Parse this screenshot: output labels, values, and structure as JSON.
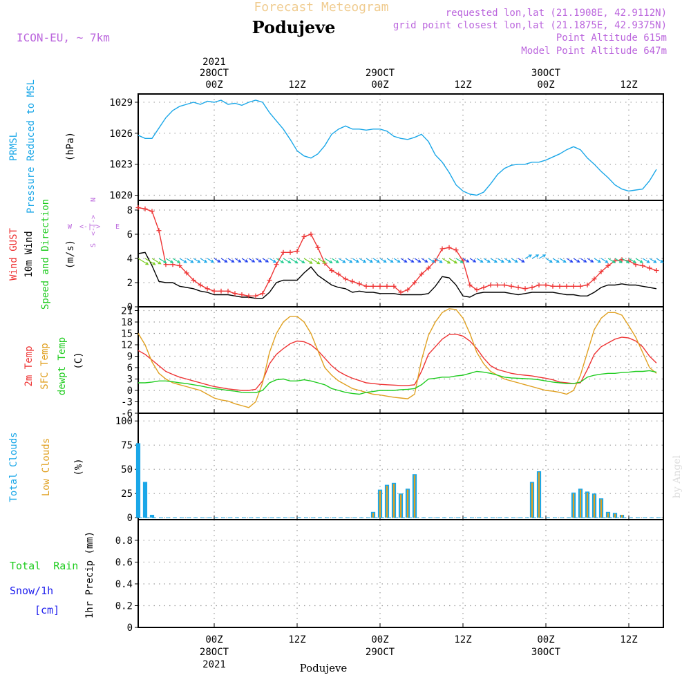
{
  "header": {
    "title": "Forecast Meteogram",
    "location": "Podujeve",
    "model": "ICON-EU, ~ 7km",
    "requested": "requested lon,lat (21.1908E, 42.9112N)",
    "gridpoint": "grid point closest lon,lat (21.1875E, 42.9375N)",
    "point_alt": "Point Altitude 615m",
    "model_alt": "Model Point Altitude 647m",
    "footer_location": "Podujeve",
    "watermark": "by Angel"
  },
  "time_axis": {
    "top": [
      {
        "line1": "2021",
        "line2": "28OCT",
        "line3": "00Z",
        "hour": 0
      },
      {
        "line1": "",
        "line2": "",
        "line3": "12Z",
        "hour": 12
      },
      {
        "line1": "",
        "line2": "29OCT",
        "line3": "00Z",
        "hour": 24
      },
      {
        "line1": "",
        "line2": "",
        "line3": "12Z",
        "hour": 36
      },
      {
        "line1": "",
        "line2": "30OCT",
        "line3": "00Z",
        "hour": 48
      },
      {
        "line1": "",
        "line2": "",
        "line3": "12Z",
        "hour": 60
      }
    ],
    "bottom": [
      {
        "line1": "00Z",
        "line2": "28OCT",
        "line3": "2021",
        "hour": 0
      },
      {
        "line1": "12Z",
        "line2": "",
        "line3": "",
        "hour": 12
      },
      {
        "line1": "00Z",
        "line2": "29OCT",
        "line3": "",
        "hour": 24
      },
      {
        "line1": "12Z",
        "line2": "",
        "line3": "",
        "hour": 36
      },
      {
        "line1": "00Z",
        "line2": "30OCT",
        "line3": "",
        "hour": 48
      },
      {
        "line1": "12Z",
        "line2": "",
        "line3": "",
        "hour": 60
      }
    ],
    "xlim": [
      -11,
      65
    ]
  },
  "panel_labels": {
    "pressure": {
      "name": "PRMSL",
      "desc": "Pressure Reduced to MSL",
      "unit": "(hPa)"
    },
    "wind": {
      "gust": "Wind GUST",
      "wind10": "10m Wind",
      "speed": "Speed and Direction",
      "unit": "(m/s)",
      "compass_n": "N",
      "compass_s": "S",
      "compass_w": "W",
      "compass_e": "E",
      "compass_ud": "<-|->",
      "compass_lr": "<-|->"
    },
    "temp": {
      "t2m": "2m Temp",
      "sfc": "SFC Temp",
      "dewpt": "dewpt Temp",
      "unit": "(C)"
    },
    "clouds": {
      "total": "Total Clouds",
      "low": "Low Clouds",
      "unit": "(%)"
    },
    "precip": {
      "rain": "Total  Rain",
      "snow": "Snow/1h",
      "snow_unit": "[cm]",
      "unit": "1hr Precip (mm)"
    }
  },
  "colors": {
    "pressure": "#1aa7e8",
    "gust": "#ee3333",
    "wind": "#000000",
    "t2m": "#ee3333",
    "sfc": "#e0a020",
    "dewpt": "#20cc20",
    "total_clouds": "#1aa7e8",
    "low_clouds": "#e0a020",
    "rain": "#20cc20",
    "snow": "#2020ee",
    "model": "#bb66dd",
    "title": "#f0cc90"
  },
  "chart_data": [
    {
      "type": "line",
      "name": "pressure",
      "ylabel": "(hPa)",
      "ylim": [
        1019.5,
        1029.8
      ],
      "yticks": [
        1020,
        1023,
        1026,
        1029
      ],
      "x": [
        -11,
        -10,
        -9,
        -8,
        -7,
        -6,
        -5,
        -4,
        -3,
        -2,
        -1,
        0,
        1,
        2,
        3,
        4,
        5,
        6,
        7,
        8,
        9,
        10,
        11,
        12,
        13,
        14,
        15,
        16,
        17,
        18,
        19,
        20,
        21,
        22,
        23,
        24,
        25,
        26,
        27,
        28,
        29,
        30,
        31,
        32,
        33,
        34,
        35,
        36,
        37,
        38,
        39,
        40,
        41,
        42,
        43,
        44,
        45,
        46,
        47,
        48,
        49,
        50,
        51,
        52,
        53,
        54,
        55,
        56,
        57,
        58,
        59,
        60,
        61,
        62,
        63,
        64
      ],
      "series": [
        {
          "values": [
            1025.8,
            1025.5,
            1025.5,
            1026.5,
            1027.5,
            1028.2,
            1028.6,
            1028.8,
            1029.0,
            1028.8,
            1029.1,
            1029.0,
            1029.2,
            1028.8,
            1028.9,
            1028.7,
            1029.0,
            1029.2,
            1029.0,
            1028.0,
            1027.2,
            1026.4,
            1025.4,
            1024.3,
            1023.8,
            1023.6,
            1024.0,
            1024.8,
            1025.9,
            1026.4,
            1026.7,
            1026.4,
            1026.4,
            1026.3,
            1026.4,
            1026.4,
            1026.2,
            1025.7,
            1025.5,
            1025.4,
            1025.6,
            1025.9,
            1025.2,
            1023.9,
            1023.2,
            1022.2,
            1021.0,
            1020.4,
            1020.1,
            1020.0,
            1020.3,
            1021.1,
            1022.0,
            1022.6,
            1022.9,
            1023.0,
            1023.0,
            1023.2,
            1023.2,
            1023.4,
            1023.7,
            1024.0,
            1024.4,
            1024.7,
            1024.4,
            1023.6,
            1023.0,
            1022.3,
            1021.7,
            1021.0,
            1020.6,
            1020.4,
            1020.5,
            1020.6,
            1021.4,
            1022.5
          ]
        }
      ]
    },
    {
      "type": "line",
      "name": "wind",
      "ylabel": "(m/s)",
      "ylim": [
        0,
        8.8
      ],
      "yticks": [
        0,
        2,
        4,
        6,
        8
      ],
      "x": [
        -11,
        -10,
        -9,
        -8,
        -7,
        -6,
        -5,
        -4,
        -3,
        -2,
        -1,
        0,
        1,
        2,
        3,
        4,
        5,
        6,
        7,
        8,
        9,
        10,
        11,
        12,
        13,
        14,
        15,
        16,
        17,
        18,
        19,
        20,
        21,
        22,
        23,
        24,
        25,
        26,
        27,
        28,
        29,
        30,
        31,
        32,
        33,
        34,
        35,
        36,
        37,
        38,
        39,
        40,
        41,
        42,
        43,
        44,
        45,
        46,
        47,
        48,
        49,
        50,
        51,
        52,
        53,
        54,
        55,
        56,
        57,
        58,
        59,
        60,
        61,
        62,
        63,
        64
      ],
      "series": [
        {
          "name": "gust",
          "values": [
            8.2,
            8.1,
            7.9,
            6.3,
            3.5,
            3.5,
            3.4,
            2.8,
            2.2,
            1.8,
            1.5,
            1.3,
            1.3,
            1.3,
            1.1,
            1.0,
            0.9,
            0.9,
            1.1,
            2.2,
            3.5,
            4.5,
            4.5,
            4.6,
            5.8,
            6.0,
            4.9,
            3.6,
            3.0,
            2.7,
            2.3,
            2.1,
            1.9,
            1.7,
            1.7,
            1.7,
            1.7,
            1.7,
            1.2,
            1.4,
            2.0,
            2.7,
            3.2,
            3.8,
            4.8,
            4.9,
            4.7,
            3.8,
            1.8,
            1.4,
            1.6,
            1.8,
            1.8,
            1.8,
            1.7,
            1.6,
            1.5,
            1.6,
            1.8,
            1.8,
            1.7,
            1.7,
            1.7,
            1.7,
            1.7,
            1.8,
            2.3,
            2.9,
            3.4,
            3.8,
            3.9,
            3.8,
            3.5,
            3.4,
            3.2,
            3.0
          ]
        },
        {
          "name": "wind",
          "values": [
            4.4,
            4.5,
            3.4,
            2.1,
            2.0,
            2.0,
            1.7,
            1.6,
            1.5,
            1.3,
            1.2,
            1.0,
            1.0,
            1.0,
            0.9,
            0.8,
            0.8,
            0.7,
            0.7,
            1.2,
            2.0,
            2.2,
            2.2,
            2.2,
            2.8,
            3.3,
            2.6,
            2.2,
            1.8,
            1.6,
            1.5,
            1.2,
            1.3,
            1.2,
            1.2,
            1.1,
            1.1,
            1.1,
            1.0,
            1.0,
            1.0,
            1.0,
            1.1,
            1.7,
            2.5,
            2.4,
            1.8,
            0.9,
            0.8,
            1.1,
            1.2,
            1.2,
            1.2,
            1.2,
            1.1,
            1.0,
            1.1,
            1.2,
            1.2,
            1.2,
            1.2,
            1.1,
            1.0,
            1.0,
            0.9,
            0.9,
            1.2,
            1.6,
            1.8,
            1.8,
            1.9,
            1.8,
            1.8,
            1.7,
            1.6,
            1.5
          ]
        }
      ]
    },
    {
      "type": "line",
      "name": "temperature",
      "ylabel": "(C)",
      "ylim": [
        -6,
        22
      ],
      "yticks": [
        -6,
        -3,
        0,
        3,
        6,
        9,
        12,
        15,
        18,
        21
      ],
      "x": [
        -11,
        -10,
        -9,
        -8,
        -7,
        -6,
        -5,
        -4,
        -3,
        -2,
        -1,
        0,
        1,
        2,
        3,
        4,
        5,
        6,
        7,
        8,
        9,
        10,
        11,
        12,
        13,
        14,
        15,
        16,
        17,
        18,
        19,
        20,
        21,
        22,
        23,
        24,
        25,
        26,
        27,
        28,
        29,
        30,
        31,
        32,
        33,
        34,
        35,
        36,
        37,
        38,
        39,
        40,
        41,
        42,
        43,
        44,
        45,
        46,
        47,
        48,
        49,
        50,
        51,
        52,
        53,
        54,
        55,
        56,
        57,
        58,
        59,
        60,
        61,
        62,
        63,
        64
      ],
      "series": [
        {
          "name": "2m Temp",
          "values": [
            10.5,
            9.5,
            8.0,
            6.5,
            5.0,
            4.2,
            3.5,
            3.0,
            2.5,
            2.0,
            1.5,
            1.0,
            0.7,
            0.4,
            0.2,
            0.0,
            0.0,
            0.3,
            2.5,
            7.0,
            9.5,
            11.0,
            12.3,
            13.0,
            12.8,
            12.0,
            10.5,
            8.5,
            6.5,
            5.0,
            4.0,
            3.2,
            2.6,
            2.0,
            1.8,
            1.6,
            1.5,
            1.4,
            1.3,
            1.3,
            1.5,
            5.0,
            9.5,
            11.5,
            13.5,
            14.7,
            14.8,
            14.3,
            13.0,
            11.0,
            8.5,
            6.5,
            5.5,
            5.0,
            4.5,
            4.2,
            4.0,
            3.8,
            3.5,
            3.2,
            2.8,
            2.2,
            2.0,
            1.8,
            2.0,
            5.5,
            9.5,
            11.5,
            12.5,
            13.5,
            14.0,
            13.8,
            13.0,
            11.5,
            9.0,
            7.2
          ]
        },
        {
          "name": "SFC Temp",
          "values": [
            15.0,
            12.0,
            7.5,
            4.5,
            3.0,
            2.0,
            1.5,
            1.0,
            0.5,
            0.0,
            -1.0,
            -2.0,
            -2.5,
            -2.8,
            -3.5,
            -4.0,
            -4.5,
            -3.0,
            2.0,
            10.0,
            15.0,
            18.0,
            19.5,
            19.5,
            18.0,
            15.0,
            10.5,
            6.0,
            4.0,
            2.5,
            1.5,
            0.5,
            0.0,
            -0.5,
            -1.0,
            -1.2,
            -1.5,
            -1.8,
            -2.0,
            -2.2,
            -1.0,
            8.0,
            14.5,
            18.0,
            20.5,
            21.5,
            21.3,
            19.0,
            15.0,
            10.0,
            7.0,
            5.0,
            4.0,
            3.0,
            2.5,
            2.0,
            1.5,
            1.0,
            0.5,
            0.0,
            -0.2,
            -0.5,
            -1.0,
            0.0,
            4.0,
            10.0,
            16.0,
            19.0,
            20.5,
            20.5,
            19.8,
            17.0,
            14.0,
            10.0,
            6.0,
            4.5
          ]
        },
        {
          "name": "dewpt Temp",
          "values": [
            2.0,
            2.0,
            2.2,
            2.5,
            2.5,
            2.3,
            2.0,
            1.8,
            1.5,
            1.2,
            0.8,
            0.5,
            0.3,
            0.0,
            -0.2,
            -0.5,
            -0.6,
            -0.6,
            0.0,
            2.0,
            2.8,
            3.0,
            2.5,
            2.5,
            2.8,
            2.5,
            2.0,
            1.5,
            0.5,
            0.0,
            -0.5,
            -0.8,
            -1.0,
            -0.5,
            -0.3,
            0.0,
            0.0,
            0.0,
            0.2,
            0.3,
            0.5,
            1.5,
            3.0,
            3.2,
            3.5,
            3.5,
            3.8,
            4.0,
            4.5,
            5.0,
            4.8,
            4.5,
            4.0,
            3.5,
            3.3,
            3.2,
            3.1,
            3.0,
            2.8,
            2.5,
            2.2,
            2.0,
            1.8,
            1.8,
            2.2,
            3.5,
            4.0,
            4.3,
            4.5,
            4.5,
            4.7,
            4.8,
            5.0,
            5.0,
            5.2,
            4.8
          ]
        }
      ]
    },
    {
      "type": "bar",
      "name": "clouds",
      "ylabel": "(%)",
      "ylim": [
        -2,
        108
      ],
      "yticks": [
        0,
        25,
        50,
        75,
        100
      ],
      "series": [
        {
          "name": "Total Clouds",
          "hours": [
            -11,
            -10,
            -9,
            23,
            24,
            25,
            26,
            27,
            28,
            29,
            30,
            31,
            46,
            47,
            51,
            52,
            53,
            54,
            55,
            56,
            57,
            58,
            59,
            60,
            61,
            62,
            63,
            64
          ],
          "values": [
            77,
            37,
            3,
            6,
            29,
            34,
            36,
            25,
            30,
            45,
            0,
            0,
            37,
            48,
            0,
            26,
            30,
            27,
            25,
            20,
            6,
            5,
            3,
            0,
            0,
            0,
            0,
            0
          ]
        },
        {
          "name": "Low Clouds",
          "hours": [
            23,
            24,
            25,
            26,
            27,
            28,
            29,
            46,
            47,
            52,
            53,
            54,
            55,
            56,
            57,
            58,
            59
          ],
          "values": [
            5,
            28,
            33,
            35,
            24,
            29,
            44,
            36,
            47,
            25,
            29,
            26,
            24,
            19,
            5,
            4,
            3
          ]
        }
      ]
    },
    {
      "type": "line",
      "name": "precip",
      "ylabel": "1hr Precip (mm)",
      "ylim": [
        0,
        0.99
      ],
      "yticks": [
        0,
        0.2,
        0.4,
        0.6,
        0.8
      ],
      "series": [
        {
          "name": "rain",
          "values": [
            0
          ]
        }
      ]
    }
  ]
}
